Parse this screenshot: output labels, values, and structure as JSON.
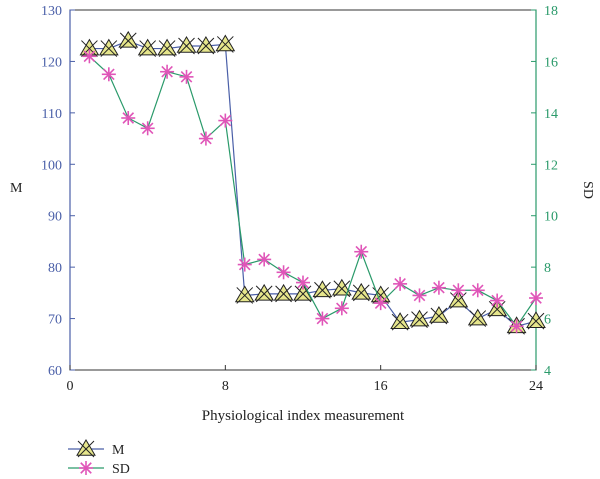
{
  "chart_data": {
    "type": "line",
    "xlabel": "Physiological index measurement",
    "xlim": [
      0,
      24
    ],
    "xticks": [
      0,
      8,
      16,
      24
    ],
    "axes": {
      "left": {
        "label": "M",
        "ylim": [
          60,
          130
        ],
        "ticks": [
          60,
          70,
          80,
          90,
          100,
          110,
          120,
          130
        ],
        "color": "#4a5fa8"
      },
      "right": {
        "label": "SD",
        "ylim": [
          4,
          18
        ],
        "ticks": [
          4,
          6,
          8,
          10,
          12,
          14,
          16,
          18
        ],
        "color": "#2a9a6a"
      }
    },
    "legend_position": "bottom-left",
    "series": [
      {
        "name": "M",
        "axis": "left",
        "marker": "triangle-x",
        "line_color": "#4a5fa8",
        "marker_fill": "#e6e68c",
        "x": [
          1,
          2,
          3,
          4,
          5,
          6,
          7,
          8,
          9,
          10,
          11,
          12,
          13,
          14,
          15,
          16,
          17,
          18,
          19,
          20,
          21,
          22,
          23,
          24
        ],
        "values": [
          122.5,
          122.5,
          124,
          122.5,
          122.5,
          123,
          123,
          123.3,
          74.5,
          74.8,
          74.8,
          74.8,
          75.5,
          75.8,
          75,
          74.5,
          69.3,
          69.8,
          70.5,
          73.5,
          70,
          71.8,
          68.5,
          69.5
        ]
      },
      {
        "name": "SD",
        "axis": "right",
        "marker": "asterisk",
        "line_color": "#2a9a6a",
        "marker_color": "#e055b8",
        "x": [
          1,
          2,
          3,
          4,
          5,
          6,
          7,
          8,
          9,
          10,
          11,
          12,
          13,
          14,
          15,
          16,
          17,
          18,
          19,
          20,
          21,
          22,
          23,
          24
        ],
        "values": [
          16.2,
          15.5,
          13.8,
          13.4,
          15.6,
          15.4,
          13.0,
          13.7,
          8.1,
          8.3,
          7.8,
          7.4,
          6.0,
          6.4,
          8.6,
          6.6,
          7.35,
          6.9,
          7.2,
          7.1,
          7.1,
          6.7,
          5.7,
          6.8
        ]
      }
    ]
  }
}
